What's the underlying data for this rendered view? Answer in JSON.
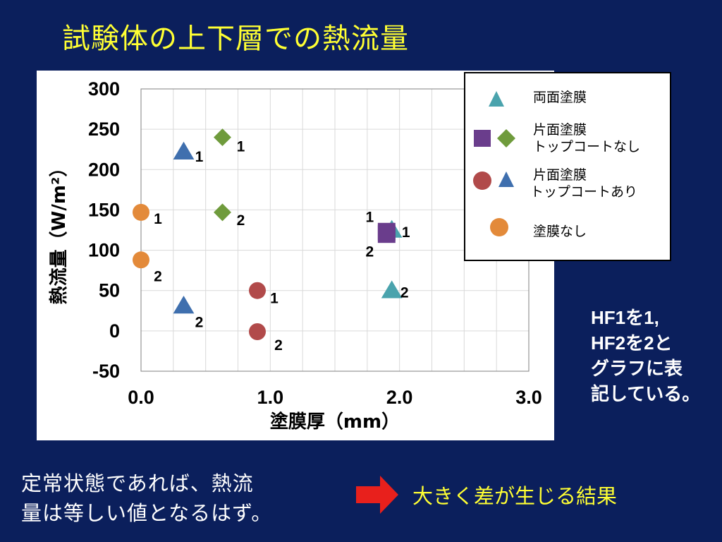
{
  "slide": {
    "title": "試験体の上下層での熱流量",
    "side_note": [
      "HF1を1,",
      "HF2を2と",
      "グラフに表",
      "記している。"
    ],
    "conclusion": [
      "定常状態であれば、熱流",
      "量は等しい値となるはず。"
    ],
    "result": "大きく差が生じる結果"
  },
  "colors": {
    "background": "#0b1f5c",
    "title": "#ffff33",
    "ryomen": "#4aa3ad",
    "katamen_square": "#6a3d8c",
    "katamen_diamond": "#6f9b3c",
    "topcoat_circle": "#b14a4a",
    "topcoat_triangle": "#3f6fae",
    "none_circle": "#e38a3a",
    "arrow": "#e8201c"
  },
  "chart_data": {
    "type": "scatter",
    "xlabel": "塗膜厚（mm）",
    "ylabel": "熱流量（W/m²）",
    "xlim": [
      0.0,
      3.0
    ],
    "ylim": [
      -50,
      300
    ],
    "xticks": [
      "0.0",
      "1.0",
      "2.0",
      "3.0"
    ],
    "yticks": [
      "300",
      "250",
      "200",
      "150",
      "100",
      "50",
      "0",
      "-50"
    ],
    "grid": true,
    "legend_position": "top-right",
    "series": [
      {
        "name": "両面塗膜",
        "marker": "triangle",
        "color": "#4aa3ad",
        "points": [
          {
            "x": 1.94,
            "y": 125,
            "label": "1"
          },
          {
            "x": 1.94,
            "y": 50,
            "label": "2"
          }
        ]
      },
      {
        "name": "片面塗膜 トップコートなし",
        "marker": "square",
        "color": "#6a3d8c",
        "points": [
          {
            "x": 1.9,
            "y": 123,
            "label": "1"
          },
          {
            "x": 1.9,
            "y": 120,
            "label": "2"
          }
        ]
      },
      {
        "name": "片面塗膜 トップコートなし",
        "marker": "diamond",
        "color": "#6f9b3c",
        "points": [
          {
            "x": 0.63,
            "y": 240,
            "label": "1"
          },
          {
            "x": 0.63,
            "y": 147,
            "label": "2"
          }
        ]
      },
      {
        "name": "片面塗膜 トップコートあり",
        "marker": "circle",
        "color": "#b14a4a",
        "points": [
          {
            "x": 0.9,
            "y": 50,
            "label": "1"
          },
          {
            "x": 0.9,
            "y": -1,
            "label": "2"
          }
        ]
      },
      {
        "name": "片面塗膜 トップコートあり",
        "marker": "triangle",
        "color": "#3f6fae",
        "points": [
          {
            "x": 0.33,
            "y": 222,
            "label": "1"
          },
          {
            "x": 0.33,
            "y": 31,
            "label": "2"
          }
        ]
      },
      {
        "name": "塗膜なし",
        "marker": "circle",
        "color": "#e38a3a",
        "points": [
          {
            "x": 0.0,
            "y": 147,
            "label": "1"
          },
          {
            "x": 0.0,
            "y": 88,
            "label": "2"
          }
        ]
      }
    ],
    "legend": [
      {
        "label": "両面塗膜",
        "markers": [
          "triangle:#4aa3ad"
        ]
      },
      {
        "label": "片面塗膜",
        "label2": "トップコートなし",
        "markers": [
          "square:#6a3d8c",
          "diamond:#6f9b3c"
        ]
      },
      {
        "label": "片面塗膜",
        "label2": "トップコートあり",
        "markers": [
          "circle:#b14a4a",
          "triangle:#3f6fae"
        ]
      },
      {
        "label": "塗膜なし",
        "markers": [
          "circle:#e38a3a"
        ]
      }
    ]
  }
}
